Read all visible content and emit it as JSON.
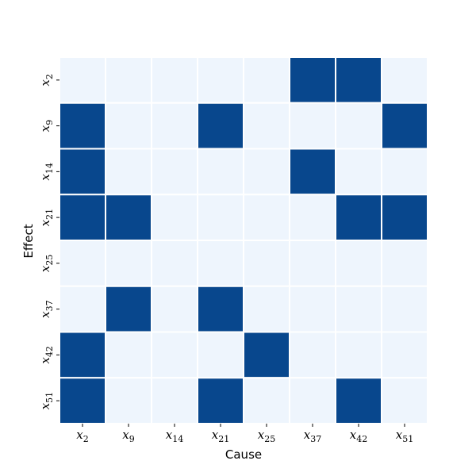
{
  "chart_data": {
    "type": "heatmap",
    "title": "",
    "xlabel": "Cause",
    "ylabel": "Effect",
    "x_categories": [
      {
        "base": "x",
        "sub": "2"
      },
      {
        "base": "x",
        "sub": "9"
      },
      {
        "base": "x",
        "sub": "14"
      },
      {
        "base": "x",
        "sub": "21"
      },
      {
        "base": "x",
        "sub": "25"
      },
      {
        "base": "x",
        "sub": "37"
      },
      {
        "base": "x",
        "sub": "42"
      },
      {
        "base": "x",
        "sub": "51"
      }
    ],
    "y_categories": [
      {
        "base": "x",
        "sub": "2"
      },
      {
        "base": "x",
        "sub": "9"
      },
      {
        "base": "x",
        "sub": "14"
      },
      {
        "base": "x",
        "sub": "21"
      },
      {
        "base": "x",
        "sub": "25"
      },
      {
        "base": "x",
        "sub": "37"
      },
      {
        "base": "x",
        "sub": "42"
      },
      {
        "base": "x",
        "sub": "51"
      }
    ],
    "values": [
      [
        0,
        0,
        0,
        0,
        0,
        1,
        1,
        0
      ],
      [
        1,
        0,
        0,
        1,
        0,
        0,
        0,
        1
      ],
      [
        1,
        0,
        0,
        0,
        0,
        1,
        0,
        0
      ],
      [
        1,
        1,
        0,
        0,
        0,
        0,
        1,
        1
      ],
      [
        0,
        0,
        0,
        0,
        0,
        0,
        0,
        0
      ],
      [
        0,
        1,
        0,
        1,
        0,
        0,
        0,
        0
      ],
      [
        1,
        0,
        0,
        0,
        1,
        0,
        0,
        0
      ],
      [
        1,
        0,
        0,
        1,
        0,
        0,
        1,
        0
      ]
    ],
    "colors": {
      "low": "#eef5fd",
      "high": "#08478d",
      "gridline": "#ffffff"
    },
    "legend": "none",
    "colorbar": false
  }
}
